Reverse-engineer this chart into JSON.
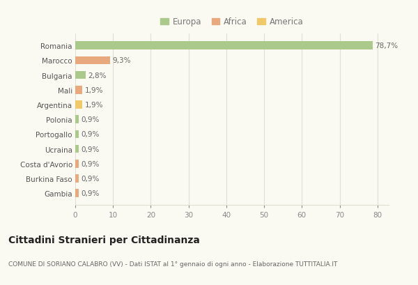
{
  "categories": [
    "Romania",
    "Marocco",
    "Bulgaria",
    "Mali",
    "Argentina",
    "Polonia",
    "Portogallo",
    "Ucraina",
    "Costa d'Avorio",
    "Burkina Faso",
    "Gambia"
  ],
  "values": [
    78.7,
    9.3,
    2.8,
    1.9,
    1.9,
    0.9,
    0.9,
    0.9,
    0.9,
    0.9,
    0.9
  ],
  "labels": [
    "78,7%",
    "9,3%",
    "2,8%",
    "1,9%",
    "1,9%",
    "0,9%",
    "0,9%",
    "0,9%",
    "0,9%",
    "0,9%",
    "0,9%"
  ],
  "colors": [
    "#aac98a",
    "#e8a97e",
    "#aac98a",
    "#e8a97e",
    "#f0c96a",
    "#aac98a",
    "#aac98a",
    "#aac98a",
    "#e8a97e",
    "#e8a97e",
    "#e8a97e"
  ],
  "legend_labels": [
    "Europa",
    "Africa",
    "America"
  ],
  "legend_colors": [
    "#aac98a",
    "#e8a97e",
    "#f0c96a"
  ],
  "title": "Cittadini Stranieri per Cittadinanza",
  "subtitle": "COMUNE DI SORIANO CALABRO (VV) - Dati ISTAT al 1° gennaio di ogni anno - Elaborazione TUTTITALIA.IT",
  "xlim": [
    0,
    83
  ],
  "xticks": [
    0,
    10,
    20,
    30,
    40,
    50,
    60,
    70,
    80
  ],
  "background_color": "#fafaf2",
  "grid_color": "#e0e0d0",
  "bar_height": 0.55
}
